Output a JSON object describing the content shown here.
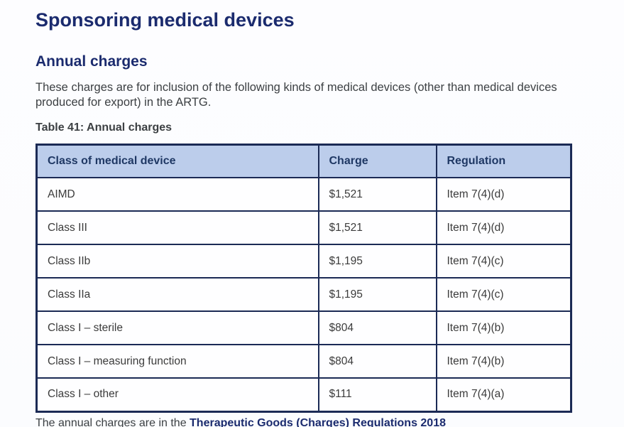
{
  "page": {
    "title": "Sponsoring medical devices",
    "section_heading": "Annual charges",
    "intro": "These charges are for inclusion of the following kinds of medical devices (other than medical devices produced for export) in the ARTG.",
    "table_caption": "Table 41: Annual charges",
    "footer_prefix": "The annual charges are in the ",
    "footer_link": "Therapeutic Goods (Charges) Regulations 2018"
  },
  "table": {
    "headers": [
      "Class of medical device",
      "Charge",
      "Regulation"
    ],
    "rows": [
      [
        "AIMD",
        "$1,521",
        "Item 7(4)(d)"
      ],
      [
        "Class III",
        "$1,521",
        "Item 7(4)(d)"
      ],
      [
        "Class IIb",
        "$1,195",
        "Item 7(4)(c)"
      ],
      [
        "Class IIa",
        "$1,195",
        "Item 7(4)(c)"
      ],
      [
        "Class I – sterile",
        "$804",
        "Item 7(4)(b)"
      ],
      [
        "Class I – measuring function",
        "$804",
        "Item 7(4)(b)"
      ],
      [
        "Class I – other",
        "$111",
        "Item 7(4)(a)"
      ]
    ]
  },
  "colors": {
    "heading_navy": "#1b2b6e",
    "table_border_navy": "#1b2a55",
    "header_row_bg": "#bccdeb",
    "header_text": "#1f3864",
    "body_text": "#3c4043"
  }
}
